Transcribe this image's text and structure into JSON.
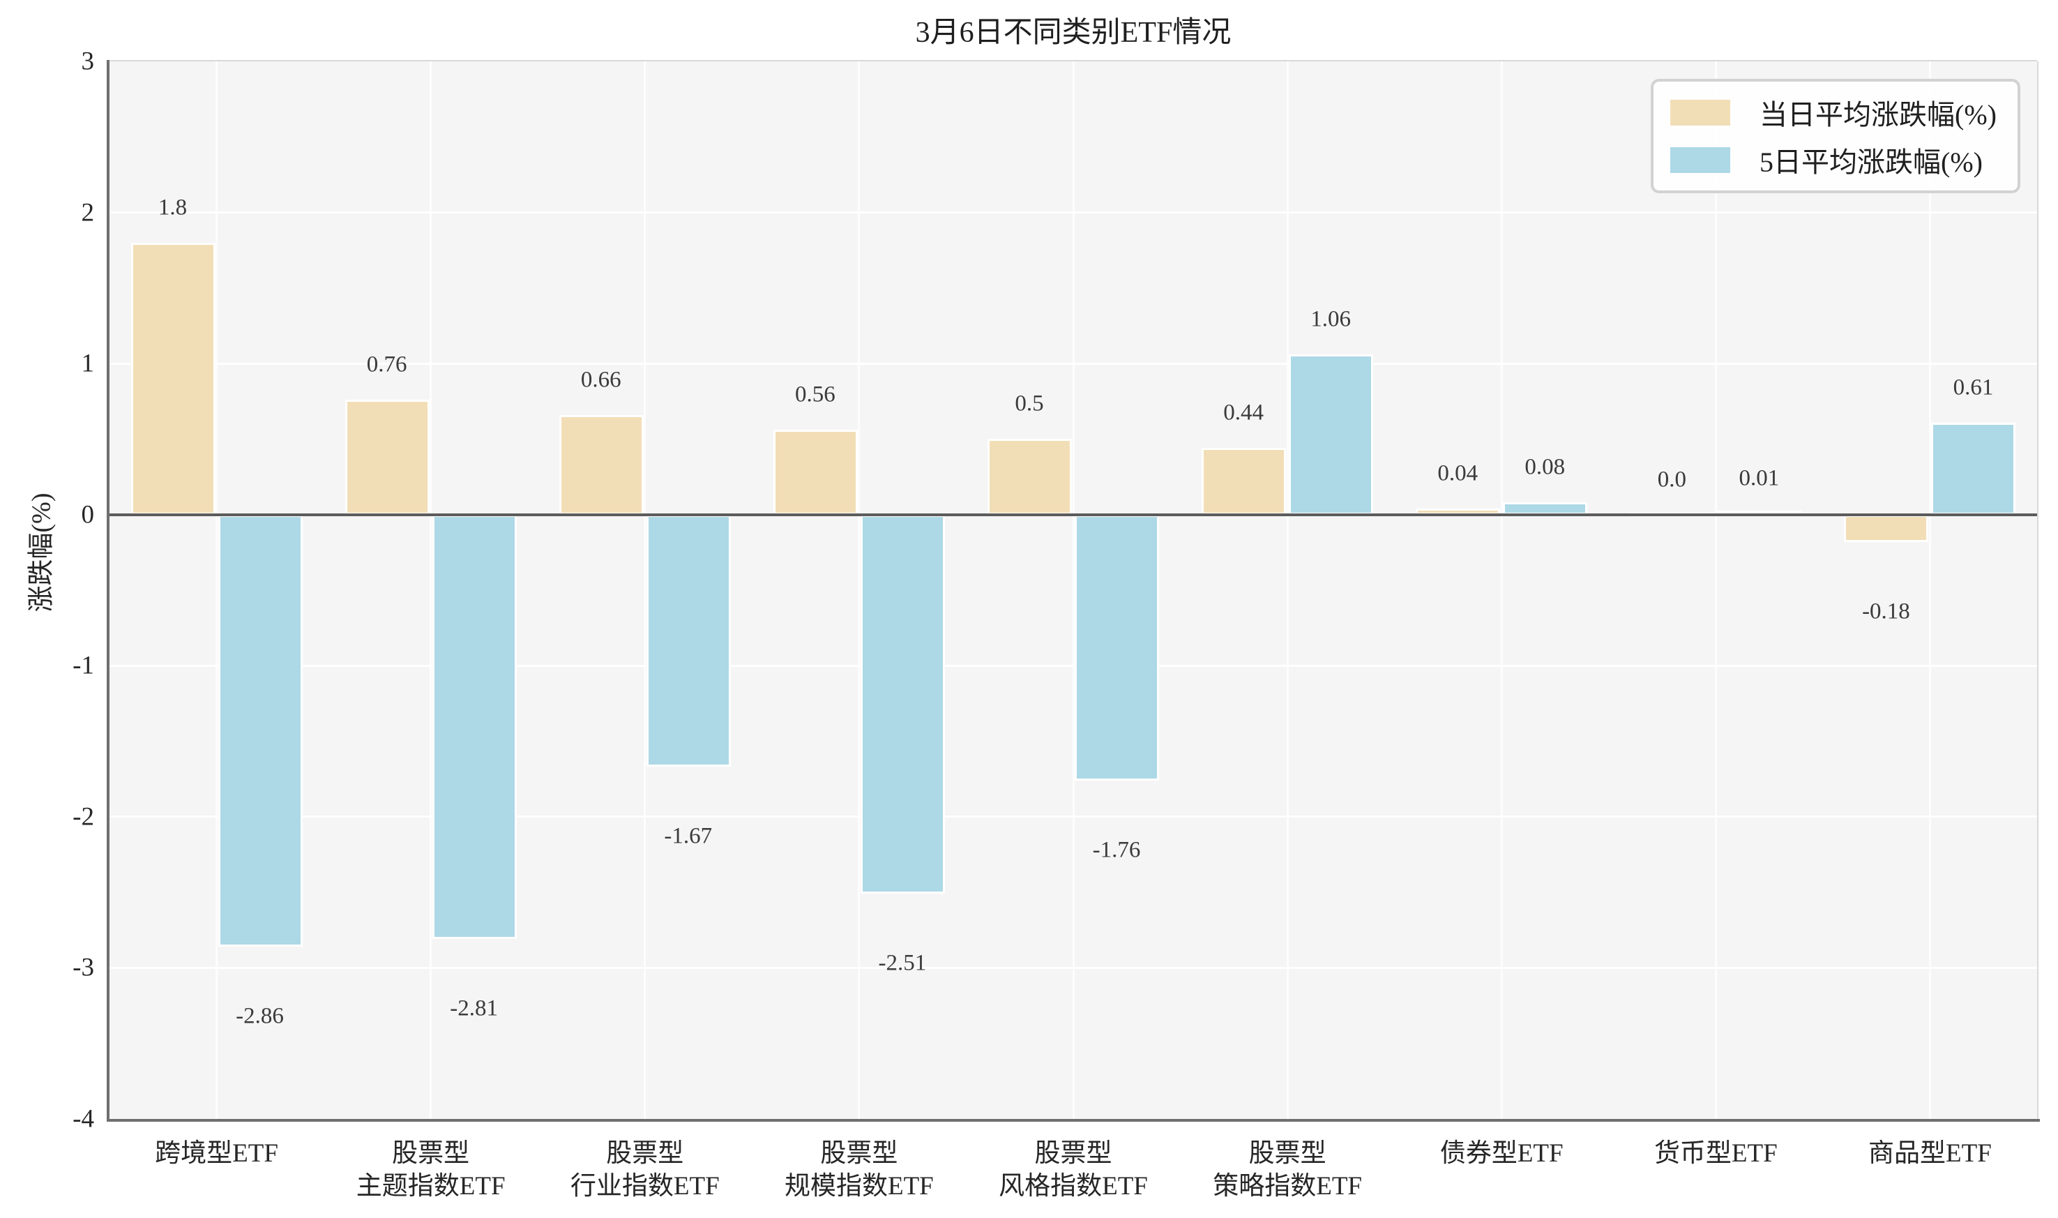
{
  "chart_data": {
    "type": "bar",
    "title": "3月6日不同类别ETF情况",
    "ylabel": "涨跌幅(%)",
    "ylim": [
      -4,
      3
    ],
    "yticks": [
      3,
      2,
      1,
      0,
      -1,
      -2,
      -3,
      -4
    ],
    "grid": true,
    "legend_position": "upper right",
    "plot_background": "#f5f5f5",
    "grid_color": "#ffffff",
    "categories": [
      "跨境型ETF",
      "股票型\n主题指数ETF",
      "股票型\n行业指数ETF",
      "股票型\n规模指数ETF",
      "股票型\n风格指数ETF",
      "股票型\n策略指数ETF",
      "债券型ETF",
      "货币型ETF",
      "商品型ETF"
    ],
    "series": [
      {
        "name": "当日平均涨跌幅(%)",
        "color": "#f2deb6",
        "values": [
          1.8,
          0.76,
          0.66,
          0.56,
          0.5,
          0.44,
          0.04,
          0.0,
          -0.18
        ],
        "labels": [
          "1.8",
          "0.76",
          "0.66",
          "0.56",
          "0.5",
          "0.44",
          "0.04",
          "0.0",
          "-0.18"
        ]
      },
      {
        "name": "5日平均涨跌幅(%)",
        "color": "#add8e6",
        "values": [
          -2.86,
          -2.81,
          -1.67,
          -2.51,
          -1.76,
          1.06,
          0.08,
          0.01,
          0.61
        ],
        "labels": [
          "-2.86",
          "-2.81",
          "-1.67",
          "-2.51",
          "-1.76",
          "1.06",
          "0.08",
          "0.01",
          "0.61"
        ]
      }
    ]
  }
}
